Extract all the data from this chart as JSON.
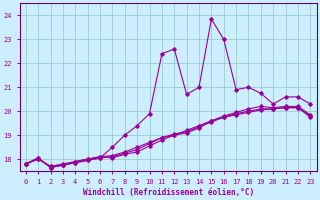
{
  "xlabel": "Windchill (Refroidissement éolien,°C)",
  "bg_color": "#cceeff",
  "line_color": "#990099",
  "grid_color": "#99cccc",
  "axis_color": "#660066",
  "xlim": [
    -0.5,
    23.5
  ],
  "ylim": [
    17.5,
    24.5
  ],
  "yticks": [
    18,
    19,
    20,
    21,
    22,
    23,
    24
  ],
  "xticks": [
    0,
    1,
    2,
    3,
    4,
    5,
    6,
    7,
    8,
    9,
    10,
    11,
    12,
    13,
    14,
    15,
    16,
    17,
    18,
    19,
    20,
    21,
    22,
    23
  ],
  "series": [
    [
      17.8,
      18.0,
      17.7,
      17.8,
      17.9,
      18.0,
      18.1,
      18.15,
      18.3,
      18.5,
      18.7,
      18.9,
      19.0,
      19.2,
      19.4,
      19.6,
      19.75,
      19.85,
      19.95,
      20.05,
      20.1,
      20.15,
      20.15,
      19.75
    ],
    [
      17.8,
      18.05,
      17.65,
      17.75,
      17.9,
      18.0,
      18.1,
      18.05,
      18.2,
      18.3,
      18.55,
      18.8,
      19.0,
      19.1,
      19.3,
      19.6,
      19.8,
      19.95,
      20.1,
      20.2,
      20.15,
      20.2,
      20.2,
      19.85
    ],
    [
      17.8,
      18.05,
      17.65,
      17.75,
      17.85,
      17.95,
      18.05,
      18.5,
      19.0,
      19.4,
      19.9,
      22.4,
      22.6,
      20.7,
      21.0,
      23.85,
      23.0,
      20.9,
      21.0,
      20.75,
      20.3,
      20.6,
      20.6,
      20.3
    ],
    [
      17.8,
      18.0,
      17.7,
      17.75,
      17.85,
      17.95,
      18.05,
      18.1,
      18.25,
      18.4,
      18.65,
      18.9,
      19.05,
      19.15,
      19.35,
      19.55,
      19.75,
      19.9,
      20.0,
      20.1,
      20.1,
      20.15,
      20.15,
      19.8
    ]
  ]
}
